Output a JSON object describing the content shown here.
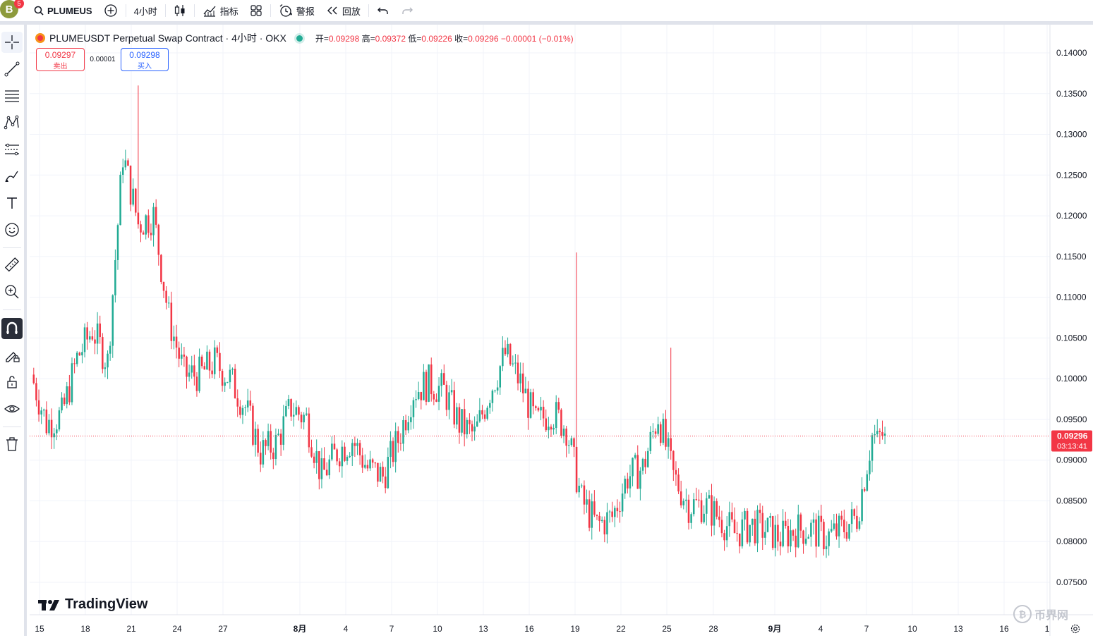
{
  "topbar": {
    "avatar_letter": "B",
    "avatar_badge": "5",
    "symbol": "PLUMEUS",
    "interval": "4小时",
    "indicators_label": "指标",
    "alerts_label": "警报",
    "replay_label": "回放"
  },
  "legend": {
    "title": "PLUMEUSDT Perpetual Swap Contract · 4小时 · OKX",
    "open_label": "开=",
    "open": "0.09298",
    "high_label": "高=",
    "high": "0.09372",
    "low_label": "低=",
    "low": "0.09226",
    "close_label": "收=",
    "close": "0.09296",
    "change": "−0.00001 (−0.01%)"
  },
  "trade": {
    "sell_price": "0.09297",
    "sell_label": "卖出",
    "spread": "0.00001",
    "buy_price": "0.09298",
    "buy_label": "买入"
  },
  "price_axis": {
    "ticks": [
      "0.14000",
      "0.13500",
      "0.13000",
      "0.12500",
      "0.12000",
      "0.11500",
      "0.11000",
      "0.10500",
      "0.10000",
      "0.09500",
      "0.09000",
      "0.08500",
      "0.08000",
      "0.07500"
    ],
    "current_price": "0.09296",
    "countdown": "03:13:41"
  },
  "time_axis": {
    "ticks": [
      "15",
      "18",
      "21",
      "24",
      "27",
      "8月",
      "4",
      "7",
      "10",
      "13",
      "16",
      "19",
      "22",
      "25",
      "28",
      "9月",
      "4",
      "7",
      "10",
      "13",
      "16",
      "1"
    ]
  },
  "branding": {
    "tradingview": "TradingView",
    "watermark": "币界网"
  },
  "colors": {
    "up": "#22ab94",
    "down": "#f23645",
    "grid": "#f0f3fa",
    "accent": "#2962ff"
  },
  "chart_data": {
    "type": "candlestick",
    "title": "PLUMEUSDT Perpetual Swap Contract · 4小时 · OKX",
    "ylim": [
      0.0725,
      0.1425
    ],
    "x_ticks": [
      "15",
      "18",
      "21",
      "24",
      "27",
      "8月",
      "4",
      "7",
      "10",
      "13",
      "16",
      "19",
      "22",
      "25",
      "28",
      "9月",
      "4",
      "7",
      "10",
      "13",
      "16",
      "1"
    ],
    "current_price": 0.09296,
    "close_trend": [
      [
        "15",
        0.1005
      ],
      [
        "16",
        0.0945
      ],
      [
        "17",
        0.0955
      ],
      [
        "18",
        0.1025
      ],
      [
        "19",
        0.106
      ],
      [
        "20",
        0.102
      ],
      [
        "21",
        0.1275
      ],
      [
        "22",
        0.119
      ],
      [
        "23",
        0.12
      ],
      [
        "24",
        0.1075
      ],
      [
        "25",
        0.1005
      ],
      [
        "26",
        0.1005
      ],
      [
        "27",
        0.102
      ],
      [
        "28",
        0.1
      ],
      [
        "29",
        0.0965
      ],
      [
        "30",
        0.091
      ],
      [
        "31",
        0.092
      ],
      [
        "8月",
        0.0965
      ],
      [
        "2",
        0.095
      ],
      [
        "3",
        0.088
      ],
      [
        "4",
        0.091
      ],
      [
        "5",
        0.0925
      ],
      [
        "6",
        0.089
      ],
      [
        "7",
        0.088
      ],
      [
        "8",
        0.0925
      ],
      [
        "9",
        0.0985
      ],
      [
        "10",
        0.0995
      ],
      [
        "11",
        0.0985
      ],
      [
        "12",
        0.0945
      ],
      [
        "13",
        0.093
      ],
      [
        "14",
        0.0985
      ],
      [
        "15",
        0.103
      ],
      [
        "16",
        0.0995
      ],
      [
        "17",
        0.0945
      ],
      [
        "18",
        0.096
      ],
      [
        "19",
        0.094
      ],
      [
        "20",
        0.085
      ],
      [
        "21",
        0.082
      ],
      [
        "22",
        0.083
      ],
      [
        "23",
        0.088
      ],
      [
        "24",
        0.089
      ],
      [
        "25",
        0.0955
      ],
      [
        "26",
        0.088
      ],
      [
        "27",
        0.0845
      ],
      [
        "28",
        0.0845
      ],
      [
        "29",
        0.083
      ],
      [
        "30",
        0.081
      ],
      [
        "31",
        0.082
      ],
      [
        "9月",
        0.0815
      ],
      [
        "2",
        0.0805
      ],
      [
        "3",
        0.0815
      ],
      [
        "4",
        0.0815
      ],
      [
        "5",
        0.0805
      ],
      [
        "6",
        0.0815
      ],
      [
        "7",
        0.083
      ],
      [
        "8",
        0.093
      ]
    ]
  }
}
